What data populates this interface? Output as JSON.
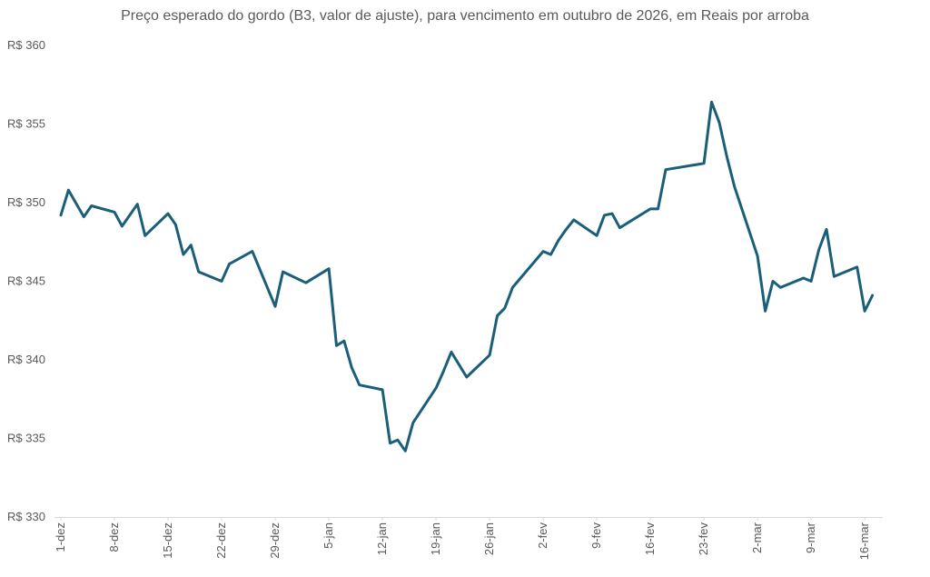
{
  "chart_data": {
    "type": "line",
    "title": "Preço esperado do gordo (B3, valor de ajuste), para vencimento em outubro de 2026, em Reais por arroba",
    "xlabel": "",
    "ylabel": "",
    "ylim": [
      330,
      360
    ],
    "ytick_values": [
      330,
      335,
      340,
      345,
      350,
      355,
      360
    ],
    "ytick_labels": [
      "R$ 330",
      "R$ 335",
      "R$ 340",
      "R$ 345",
      "R$ 350",
      "R$ 355",
      "R$ 360"
    ],
    "xlim": [
      0,
      107
    ],
    "xtick_days": [
      0,
      7,
      14,
      21,
      28,
      35,
      42,
      49,
      56,
      63,
      70,
      77,
      84,
      91,
      98,
      105
    ],
    "xtick_labels": [
      "1-dez",
      "8-dez",
      "15-dez",
      "22-dez",
      "29-dez",
      "5-jan",
      "12-jan",
      "19-jan",
      "26-jan",
      "2-fev",
      "9-fev",
      "16-fev",
      "23-fev",
      "2-mar",
      "9-mar",
      "16-mar"
    ],
    "grid": false,
    "color": "#1a5f7a",
    "series": [
      {
        "name": "Preço esperado do gordo",
        "x": [
          0,
          1,
          3,
          4,
          7,
          8,
          10,
          11,
          14,
          15,
          16,
          17,
          18,
          21,
          22,
          25,
          28,
          29,
          32,
          35,
          36,
          37,
          38,
          39,
          42,
          43,
          44,
          45,
          46,
          49,
          50,
          51,
          53,
          56,
          57,
          58,
          59,
          63,
          64,
          65,
          66,
          67,
          70,
          71,
          72,
          73,
          77,
          78,
          79,
          84,
          85,
          86,
          87,
          88,
          91,
          92,
          93,
          94,
          97,
          98,
          99,
          100,
          101,
          104,
          105,
          106
        ],
        "values": [
          349.2,
          350.8,
          349.1,
          349.8,
          349.4,
          348.5,
          349.9,
          347.9,
          349.3,
          348.6,
          346.7,
          347.3,
          345.6,
          345.0,
          346.1,
          346.9,
          343.4,
          345.6,
          344.9,
          345.8,
          340.9,
          341.2,
          339.5,
          338.4,
          338.1,
          334.7,
          334.9,
          334.2,
          336.0,
          338.2,
          339.3,
          340.5,
          338.9,
          340.3,
          342.8,
          343.3,
          344.6,
          346.9,
          346.7,
          347.6,
          348.3,
          348.9,
          347.9,
          349.2,
          349.3,
          348.4,
          349.6,
          349.6,
          352.1,
          352.5,
          356.4,
          355.1,
          352.9,
          351.0,
          346.6,
          343.1,
          345.0,
          344.6,
          345.2,
          345.0,
          347.0,
          348.3,
          345.3,
          345.9,
          343.1,
          344.1
        ]
      }
    ]
  }
}
